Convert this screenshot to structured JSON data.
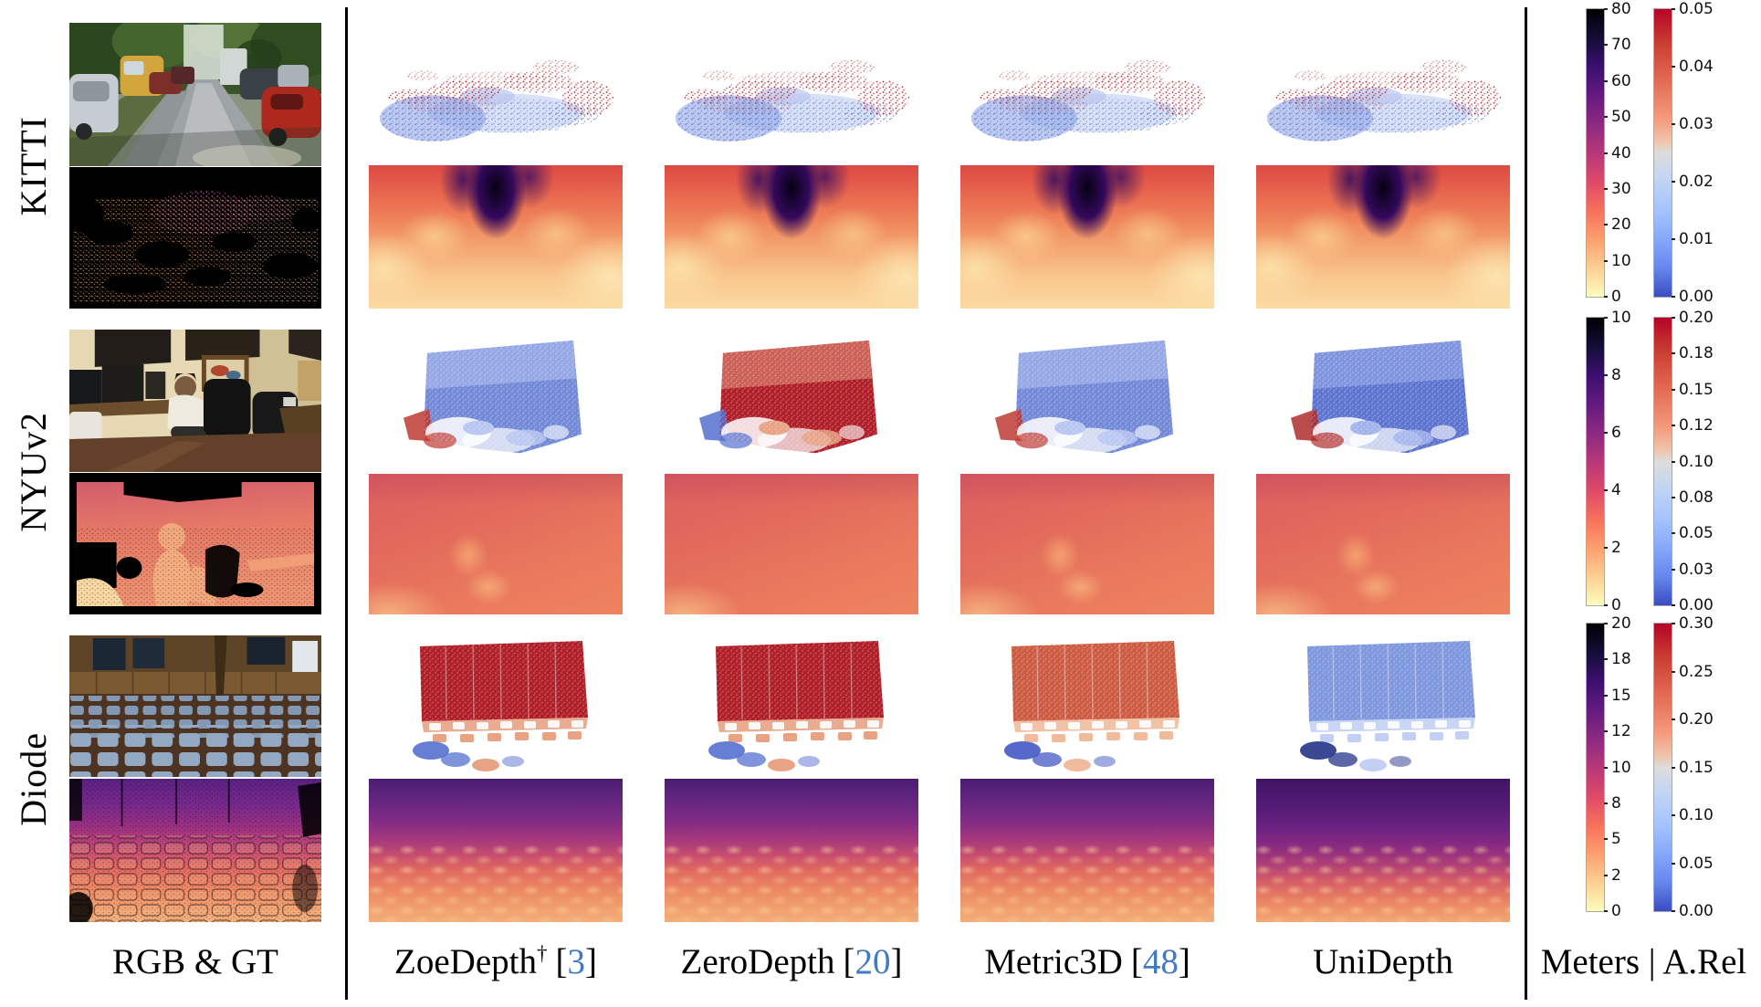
{
  "figure": {
    "rows": [
      {
        "label": "KITTI"
      },
      {
        "label": "NYUv2"
      },
      {
        "label": "Diode"
      }
    ],
    "footer": {
      "cols": [
        {
          "pre": "RGB & GT"
        },
        {
          "pre": "ZoeDepth",
          "sup": "†",
          "open": "[",
          "num": "3",
          "close": "]"
        },
        {
          "pre": "ZeroDepth",
          "open": "[",
          "num": "20",
          "close": "]"
        },
        {
          "pre": "Metric3D",
          "open": "[",
          "num": "48",
          "close": "]"
        },
        {
          "pre": "UniDepth"
        },
        {
          "pre": "Meters | A.Rel"
        }
      ]
    },
    "colors": {
      "citation": "#4179c4",
      "divider": "#000000",
      "meters_colormap_top": "#000004",
      "meters_colormap_bottom": "#fcfdbf",
      "arel_colormap_top": "#b40426",
      "arel_colormap_bottom": "#3b4cc0"
    },
    "colorbars": [
      {
        "row": "KITTI",
        "meters": {
          "max": 80,
          "ticks": [
            {
              "label": "80",
              "value": 80
            },
            {
              "label": "70",
              "value": 70
            },
            {
              "label": "60",
              "value": 60
            },
            {
              "label": "50",
              "value": 50
            },
            {
              "label": "40",
              "value": 40
            },
            {
              "label": "30",
              "value": 30
            },
            {
              "label": "20",
              "value": 20
            },
            {
              "label": "10",
              "value": 10
            },
            {
              "label": "0",
              "value": 0
            }
          ]
        },
        "arel": {
          "max": 0.05,
          "ticks": [
            {
              "label": "0.05",
              "value": 0.05
            },
            {
              "label": "0.04",
              "value": 0.04
            },
            {
              "label": "0.03",
              "value": 0.03
            },
            {
              "label": "0.02",
              "value": 0.02
            },
            {
              "label": "0.01",
              "value": 0.01
            },
            {
              "label": "0.00",
              "value": 0
            }
          ]
        }
      },
      {
        "row": "NYUv2",
        "meters": {
          "max": 10,
          "ticks": [
            {
              "label": "10",
              "value": 10
            },
            {
              "label": "8",
              "value": 8
            },
            {
              "label": "6",
              "value": 6
            },
            {
              "label": "4",
              "value": 4
            },
            {
              "label": "2",
              "value": 2
            },
            {
              "label": "0",
              "value": 0
            }
          ]
        },
        "arel": {
          "max": 0.2,
          "ticks": [
            {
              "label": "0.20",
              "value": 0.2
            },
            {
              "label": "0.18",
              "value": 0.175
            },
            {
              "label": "0.15",
              "value": 0.15
            },
            {
              "label": "0.12",
              "value": 0.125
            },
            {
              "label": "0.10",
              "value": 0.1
            },
            {
              "label": "0.08",
              "value": 0.075
            },
            {
              "label": "0.05",
              "value": 0.05
            },
            {
              "label": "0.03",
              "value": 0.025
            },
            {
              "label": "0.00",
              "value": 0
            }
          ]
        }
      },
      {
        "row": "Diode",
        "meters": {
          "max": 20,
          "ticks": [
            {
              "label": "20",
              "value": 20
            },
            {
              "label": "18",
              "value": 17.5
            },
            {
              "label": "15",
              "value": 15
            },
            {
              "label": "12",
              "value": 12.5
            },
            {
              "label": "10",
              "value": 10
            },
            {
              "label": "8",
              "value": 7.5
            },
            {
              "label": "5",
              "value": 5
            },
            {
              "label": "2",
              "value": 2.5
            },
            {
              "label": "0",
              "value": 0
            }
          ]
        },
        "arel": {
          "max": 0.3,
          "ticks": [
            {
              "label": "0.30",
              "value": 0.3
            },
            {
              "label": "0.25",
              "value": 0.25
            },
            {
              "label": "0.20",
              "value": 0.2
            },
            {
              "label": "0.15",
              "value": 0.15
            },
            {
              "label": "0.10",
              "value": 0.1
            },
            {
              "label": "0.05",
              "value": 0.05
            },
            {
              "label": "0.00",
              "value": 0
            }
          ]
        }
      }
    ]
  }
}
